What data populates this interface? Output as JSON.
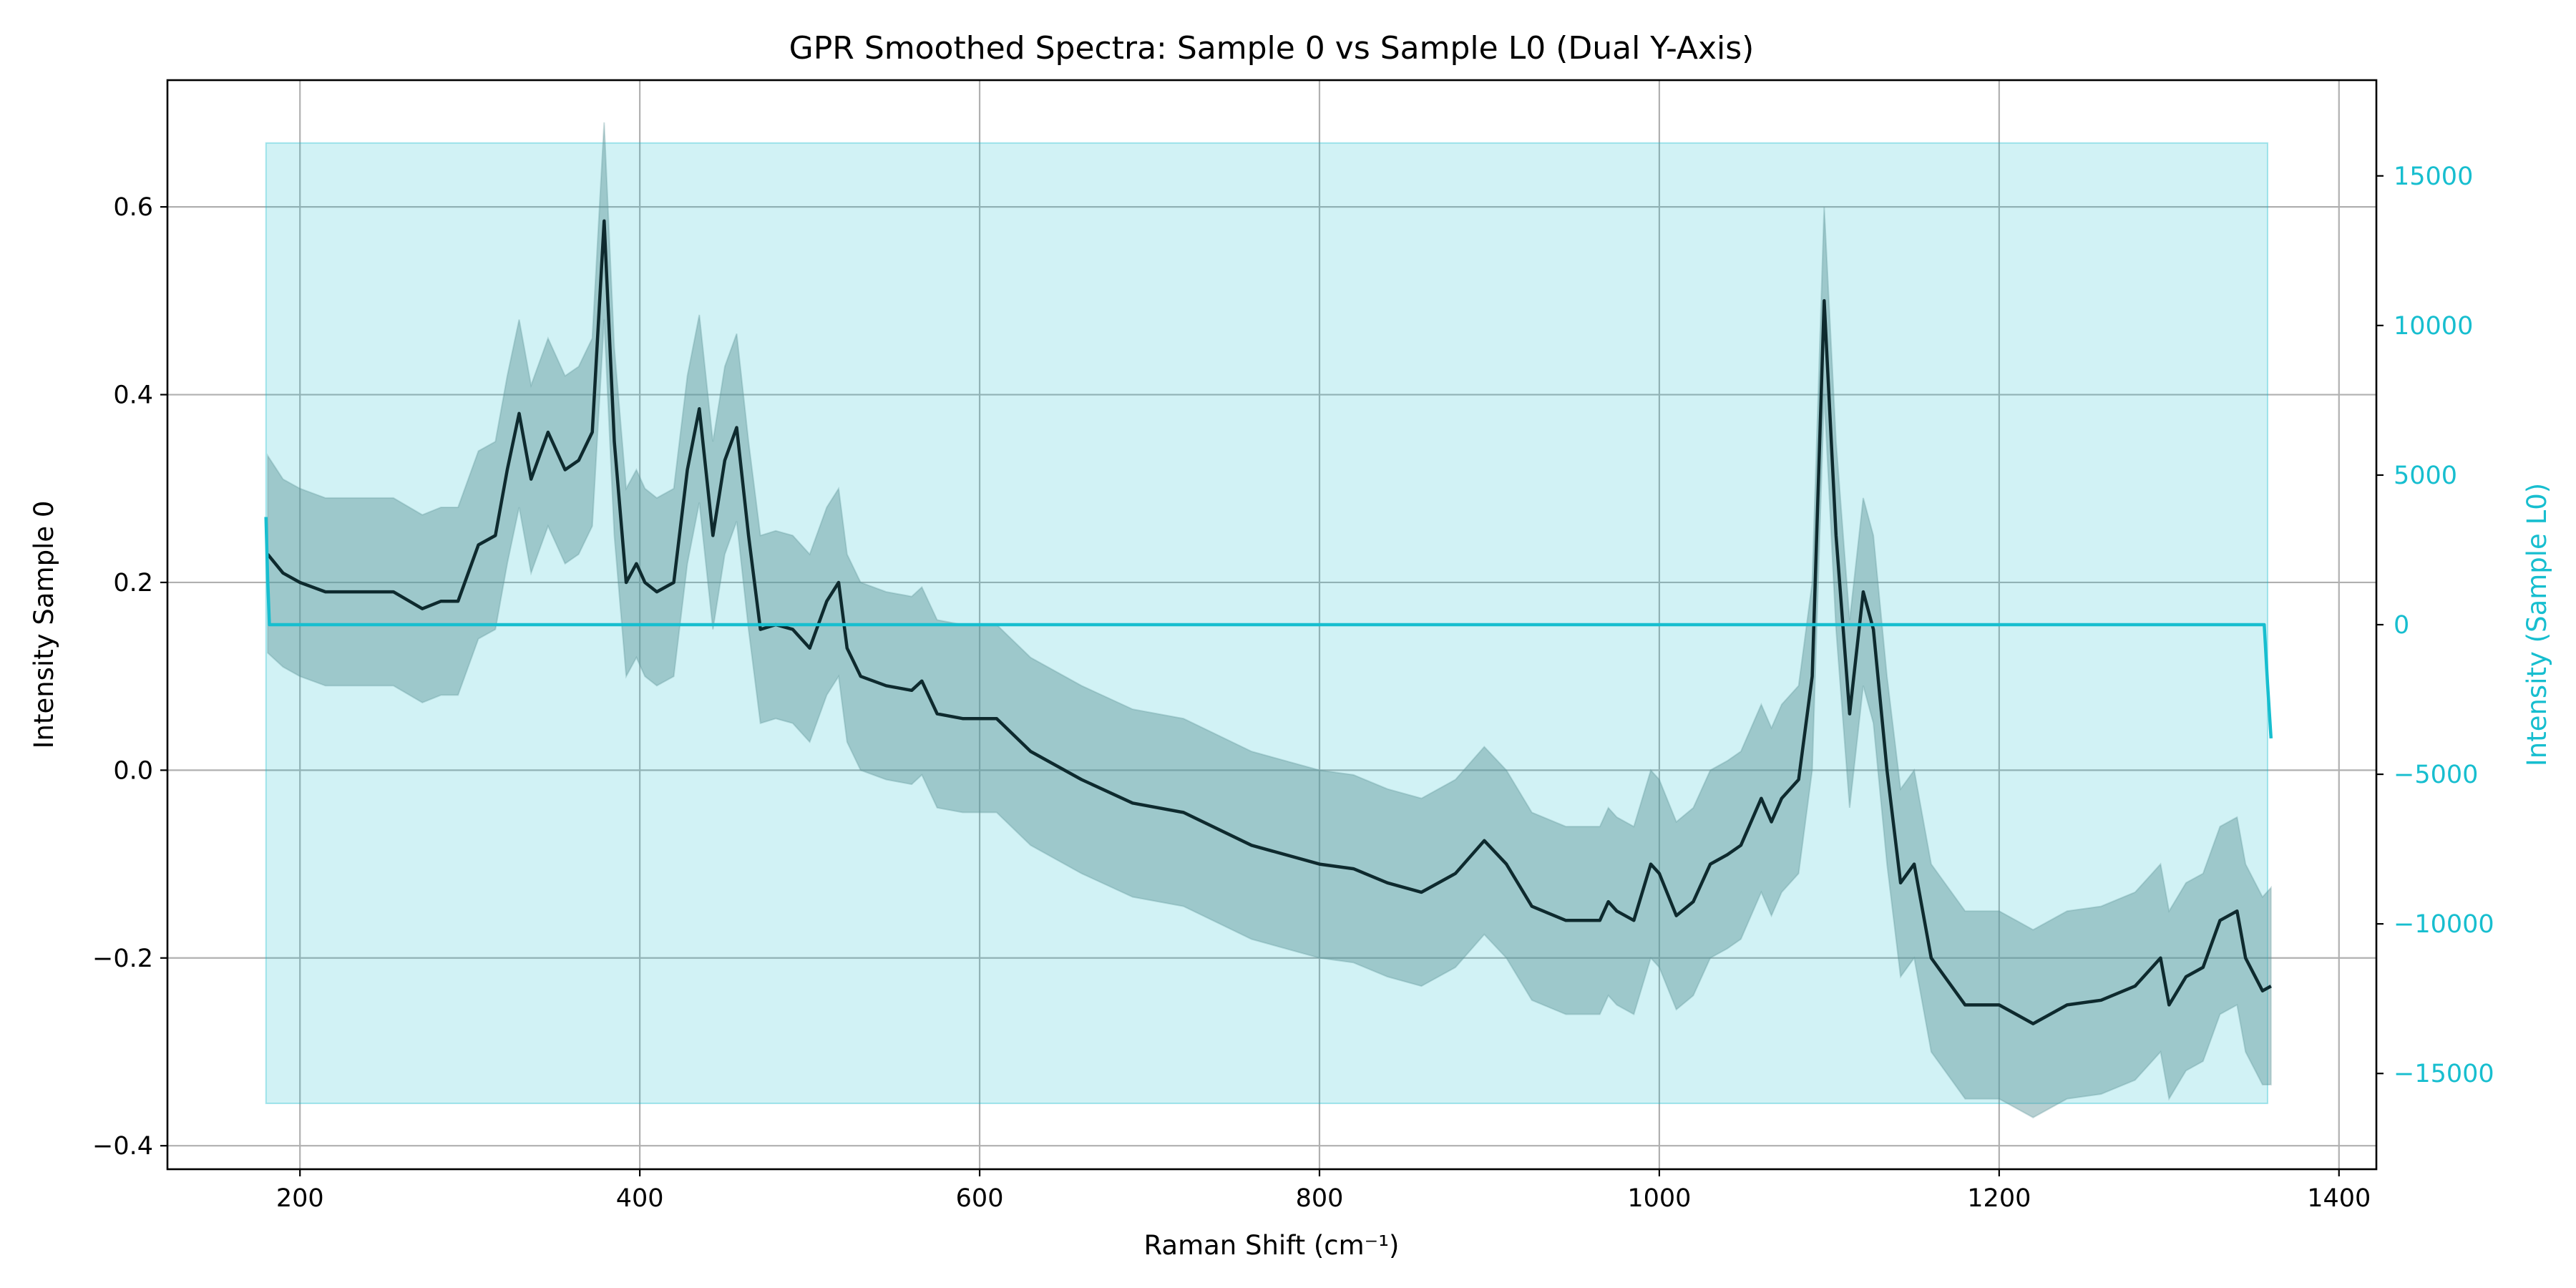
{
  "chart_data": {
    "type": "line",
    "title": "GPR Smoothed Spectra: Sample 0 vs Sample L0 (Dual Y-Axis)",
    "xlabel": "Raman Shift (cm⁻¹)",
    "ylabel_left": "Intensity Sample 0",
    "ylabel_right": "Intensity (Sample L0)",
    "xlim": [
      122,
      1422
    ],
    "ylim_left": [
      -0.425,
      0.735
    ],
    "ylim_right": [
      -18200,
      18200
    ],
    "x_ticks": [
      "200",
      "400",
      "600",
      "800",
      "1000",
      "1200",
      "1400"
    ],
    "x_tick_values": [
      200,
      400,
      600,
      800,
      1000,
      1200,
      1400
    ],
    "y_left_ticks": [
      "−0.4",
      "−0.2",
      "0.0",
      "0.2",
      "0.4",
      "0.6"
    ],
    "y_left_tick_values": [
      -0.4,
      -0.2,
      0.0,
      0.2,
      0.4,
      0.6
    ],
    "y_right_ticks": [
      "−15000",
      "−10000",
      "−5000",
      "0",
      "5000",
      "10000",
      "15000"
    ],
    "y_right_tick_values": [
      -15000,
      -10000,
      -5000,
      0,
      5000,
      10000,
      15000
    ],
    "grid": true,
    "colors": {
      "sample0": "#0e2a2e",
      "sample0_band": "#5e9599",
      "sampleL0": "#17becf",
      "sampleL0_band": "#17becf",
      "right_axis": "#17becf",
      "grid": "#b0b0b0"
    },
    "series": [
      {
        "name": "",
        "axis": "left",
        "x": [
          181,
          190,
          200,
          215,
          235,
          255,
          272,
          283,
          293,
          305,
          315,
          322,
          329,
          336,
          346,
          356,
          364,
          372,
          379,
          385,
          392,
          398,
          403,
          410,
          420,
          428,
          435,
          443,
          450,
          457,
          464,
          471,
          480,
          490,
          500,
          510,
          517,
          522,
          530,
          545,
          560,
          566,
          575,
          590,
          610,
          630,
          660,
          690,
          720,
          760,
          800,
          820,
          840,
          860,
          880,
          897,
          910,
          925,
          945,
          965,
          970,
          975,
          985,
          995,
          1000,
          1010,
          1020,
          1030,
          1040,
          1048,
          1060,
          1066,
          1072,
          1082,
          1090,
          1097,
          1104,
          1112,
          1120,
          1126,
          1134,
          1142,
          1150,
          1160,
          1180,
          1200,
          1210,
          1220,
          1240,
          1260,
          1280,
          1290,
          1295,
          1300,
          1310,
          1320,
          1330,
          1340,
          1345,
          1355,
          1360
        ],
        "y": [
          0.23,
          0.21,
          0.2,
          0.19,
          0.19,
          0.19,
          0.172,
          0.18,
          0.18,
          0.24,
          0.25,
          0.32,
          0.38,
          0.31,
          0.36,
          0.32,
          0.33,
          0.36,
          0.585,
          0.35,
          0.2,
          0.22,
          0.2,
          0.19,
          0.2,
          0.32,
          0.385,
          0.25,
          0.33,
          0.365,
          0.25,
          0.15,
          0.155,
          0.15,
          0.13,
          0.18,
          0.2,
          0.13,
          0.1,
          0.09,
          0.085,
          0.095,
          0.06,
          0.055,
          0.055,
          0.02,
          -0.01,
          -0.035,
          -0.045,
          -0.08,
          -0.1,
          -0.105,
          -0.12,
          -0.13,
          -0.11,
          -0.075,
          -0.1,
          -0.145,
          -0.16,
          -0.16,
          -0.14,
          -0.15,
          -0.16,
          -0.1,
          -0.11,
          -0.155,
          -0.14,
          -0.1,
          -0.09,
          -0.08,
          -0.03,
          -0.055,
          -0.03,
          -0.01,
          0.1,
          0.5,
          0.25,
          0.06,
          0.19,
          0.15,
          0.0,
          -0.12,
          -0.1,
          -0.2,
          -0.25,
          -0.25,
          -0.26,
          -0.27,
          -0.25,
          -0.245,
          -0.23,
          -0.21,
          -0.2,
          -0.25,
          -0.22,
          -0.21,
          -0.16,
          -0.15,
          -0.2,
          -0.235,
          -0.23
        ],
        "band_width": [
          0.105,
          0.1,
          0.1,
          0.1,
          0.1,
          0.1,
          0.1,
          0.1,
          0.1,
          0.1,
          0.1,
          0.1,
          0.1,
          0.1,
          0.1,
          0.1,
          0.1,
          0.1,
          0.105,
          0.1,
          0.1,
          0.1,
          0.1,
          0.1,
          0.1,
          0.1,
          0.1,
          0.1,
          0.1,
          0.1,
          0.1,
          0.1,
          0.1,
          0.1,
          0.1,
          0.1,
          0.1,
          0.1,
          0.1,
          0.1,
          0.1,
          0.1,
          0.1,
          0.1,
          0.1,
          0.1,
          0.1,
          0.1,
          0.1,
          0.1,
          0.1,
          0.1,
          0.1,
          0.1,
          0.1,
          0.1,
          0.1,
          0.1,
          0.1,
          0.1,
          0.1,
          0.1,
          0.1,
          0.1,
          0.1,
          0.1,
          0.1,
          0.1,
          0.1,
          0.1,
          0.1,
          0.1,
          0.1,
          0.1,
          0.1,
          0.1,
          0.1,
          0.1,
          0.1,
          0.1,
          0.1,
          0.1,
          0.1,
          0.1,
          0.1,
          0.1,
          0.1,
          0.1,
          0.1,
          0.1,
          0.1,
          0.1,
          0.1,
          0.1,
          0.1,
          0.1,
          0.1,
          0.1,
          0.1,
          0.1,
          0.105
        ]
      },
      {
        "name": "",
        "axis": "right",
        "x": [
          180,
          181,
          182,
          1356,
          1358,
          1360
        ],
        "y": [
          3600,
          1500,
          0,
          0,
          -2000,
          -3800
        ],
        "band_lower": -16000,
        "band_upper": 16100,
        "band_x": [
          180,
          1358
        ]
      }
    ]
  }
}
